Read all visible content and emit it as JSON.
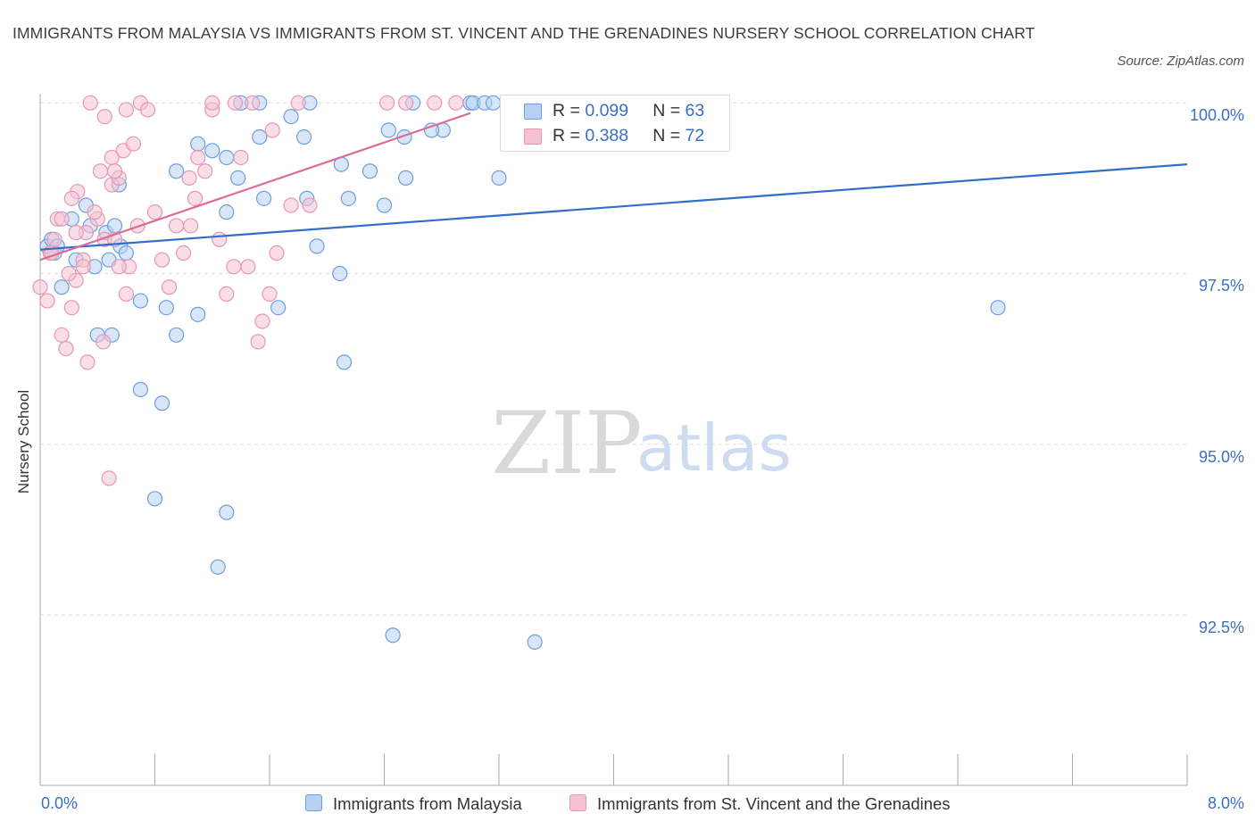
{
  "title": "IMMIGRANTS FROM MALAYSIA VS IMMIGRANTS FROM ST. VINCENT AND THE GRENADINES NURSERY SCHOOL CORRELATION CHART",
  "source": "Source: ZipAtlas.com",
  "watermark": {
    "zip": "ZIP",
    "atlas": "atlas"
  },
  "legend_box": {
    "row1": {
      "r_label": "R =",
      "r_value": "0.099",
      "n_label": "N =",
      "n_value": "63"
    },
    "row2": {
      "r_label": "R =",
      "r_value": "0.388",
      "n_label": "N =",
      "n_value": "72"
    }
  },
  "colors": {
    "blue_fill": "#b8d1f3",
    "blue_stroke": "#6d9ee0",
    "blue_line": "#2f6ec9",
    "pink_fill": "#f6c2d3",
    "pink_stroke": "#e597b4",
    "pink_line": "#dd6b97",
    "tick_text": "#3a6fc4",
    "grid": "#dddddd"
  },
  "chart_data": {
    "type": "scatter",
    "title": "IMMIGRANTS FROM MALAYSIA VS IMMIGRANTS FROM ST. VINCENT AND THE GRENADINES NURSERY SCHOOL CORRELATION CHART",
    "xlabel": "",
    "ylabel": "Nursery School",
    "xlim": [
      0,
      8
    ],
    "ylim": [
      90.0,
      100.2
    ],
    "x_tick_labels": [
      "0.0%",
      "8.0%"
    ],
    "y_ticks": [
      92.5,
      95.0,
      97.5,
      100.0
    ],
    "y_tick_labels": [
      "92.5%",
      "95.0%",
      "97.5%",
      "100.0%"
    ],
    "grid": true,
    "legend_position": "bottom",
    "series": [
      {
        "name": "Immigrants from Malaysia",
        "color": "#6d9ee0",
        "R": 0.099,
        "N": 63,
        "trend": {
          "x": [
            0.0,
            8.0
          ],
          "y": [
            97.85,
            99.1
          ]
        },
        "points": [
          [
            0.05,
            97.9
          ],
          [
            0.08,
            98.0
          ],
          [
            0.1,
            97.8
          ],
          [
            0.15,
            97.3
          ],
          [
            0.12,
            97.9
          ],
          [
            0.22,
            98.3
          ],
          [
            0.25,
            97.7
          ],
          [
            0.32,
            98.5
          ],
          [
            0.35,
            98.2
          ],
          [
            0.38,
            97.6
          ],
          [
            0.46,
            98.1
          ],
          [
            0.48,
            97.7
          ],
          [
            0.52,
            98.2
          ],
          [
            0.56,
            97.9
          ],
          [
            0.6,
            97.8
          ],
          [
            0.4,
            96.6
          ],
          [
            0.5,
            96.6
          ],
          [
            0.7,
            97.1
          ],
          [
            0.88,
            97.0
          ],
          [
            0.95,
            96.6
          ],
          [
            1.1,
            96.9
          ],
          [
            0.7,
            95.8
          ],
          [
            0.85,
            95.6
          ],
          [
            0.8,
            94.2
          ],
          [
            1.3,
            94.0
          ],
          [
            1.24,
            93.2
          ],
          [
            1.2,
            99.3
          ],
          [
            1.3,
            99.2
          ],
          [
            1.38,
            98.9
          ],
          [
            1.53,
            99.5
          ],
          [
            1.4,
            100.0
          ],
          [
            1.53,
            100.0
          ],
          [
            1.56,
            98.6
          ],
          [
            1.3,
            98.4
          ],
          [
            1.84,
            99.5
          ],
          [
            1.75,
            99.8
          ],
          [
            1.88,
            100.0
          ],
          [
            1.93,
            97.9
          ],
          [
            2.09,
            97.5
          ],
          [
            2.1,
            99.1
          ],
          [
            2.15,
            98.6
          ],
          [
            2.4,
            98.5
          ],
          [
            2.3,
            99.0
          ],
          [
            2.43,
            99.6
          ],
          [
            2.54,
            99.5
          ],
          [
            2.55,
            98.9
          ],
          [
            2.6,
            100.0
          ],
          [
            3.0,
            100.0
          ],
          [
            3.02,
            100.0
          ],
          [
            3.1,
            100.0
          ],
          [
            3.2,
            98.9
          ],
          [
            2.81,
            99.6
          ],
          [
            3.16,
            100.0
          ],
          [
            1.66,
            97.0
          ],
          [
            2.12,
            96.2
          ],
          [
            2.46,
            92.2
          ],
          [
            3.45,
            92.1
          ],
          [
            6.68,
            97.0
          ],
          [
            1.1,
            99.4
          ],
          [
            2.73,
            99.6
          ],
          [
            0.55,
            98.8
          ],
          [
            0.95,
            99.0
          ],
          [
            1.86,
            98.6
          ]
        ]
      },
      {
        "name": "Immigrants from St. Vincent and the Grenadines",
        "color": "#e597b4",
        "R": 0.388,
        "N": 72,
        "trend": {
          "x": [
            0.0,
            3.0
          ],
          "y": [
            97.7,
            99.85
          ]
        },
        "points": [
          [
            0.0,
            97.3
          ],
          [
            0.05,
            97.1
          ],
          [
            0.07,
            97.8
          ],
          [
            0.1,
            98.0
          ],
          [
            0.12,
            98.3
          ],
          [
            0.15,
            96.6
          ],
          [
            0.18,
            96.4
          ],
          [
            0.22,
            97.0
          ],
          [
            0.25,
            97.4
          ],
          [
            0.26,
            98.7
          ],
          [
            0.3,
            97.7
          ],
          [
            0.32,
            98.1
          ],
          [
            0.33,
            96.2
          ],
          [
            0.4,
            98.3
          ],
          [
            0.44,
            96.5
          ],
          [
            0.45,
            98.0
          ],
          [
            0.5,
            98.8
          ],
          [
            0.52,
            98.0
          ],
          [
            0.55,
            98.9
          ],
          [
            0.58,
            99.3
          ],
          [
            0.6,
            97.2
          ],
          [
            0.62,
            97.6
          ],
          [
            0.65,
            99.4
          ],
          [
            0.7,
            100.0
          ],
          [
            0.75,
            99.9
          ],
          [
            0.8,
            98.4
          ],
          [
            0.85,
            97.7
          ],
          [
            0.9,
            97.3
          ],
          [
            0.95,
            98.2
          ],
          [
            1.0,
            97.8
          ],
          [
            1.05,
            98.2
          ],
          [
            1.08,
            98.6
          ],
          [
            1.1,
            99.2
          ],
          [
            1.15,
            99.0
          ],
          [
            1.2,
            99.9
          ],
          [
            1.25,
            98.0
          ],
          [
            1.3,
            97.2
          ],
          [
            1.35,
            97.6
          ],
          [
            1.4,
            99.2
          ],
          [
            1.45,
            97.6
          ],
          [
            1.48,
            100.0
          ],
          [
            1.52,
            96.5
          ],
          [
            1.55,
            96.8
          ],
          [
            1.6,
            97.2
          ],
          [
            1.62,
            99.6
          ],
          [
            1.65,
            97.8
          ],
          [
            1.75,
            98.5
          ],
          [
            1.8,
            100.0
          ],
          [
            1.88,
            98.5
          ],
          [
            0.35,
            100.0
          ],
          [
            0.45,
            99.8
          ],
          [
            0.5,
            99.2
          ],
          [
            0.6,
            99.9
          ],
          [
            0.25,
            98.1
          ],
          [
            0.48,
            94.5
          ],
          [
            0.15,
            98.3
          ],
          [
            0.08,
            97.8
          ],
          [
            1.2,
            100.0
          ],
          [
            1.36,
            100.0
          ],
          [
            2.42,
            100.0
          ],
          [
            2.55,
            100.0
          ],
          [
            2.75,
            100.0
          ],
          [
            2.9,
            100.0
          ],
          [
            0.42,
            99.0
          ],
          [
            0.38,
            98.4
          ],
          [
            0.22,
            98.6
          ],
          [
            0.3,
            97.6
          ],
          [
            1.04,
            98.9
          ],
          [
            0.68,
            98.2
          ],
          [
            0.55,
            97.6
          ],
          [
            0.2,
            97.5
          ],
          [
            0.52,
            99.0
          ]
        ]
      }
    ]
  },
  "legend_bottom": [
    "Immigrants from Malaysia",
    "Immigrants from St. Vincent and the Grenadines"
  ]
}
